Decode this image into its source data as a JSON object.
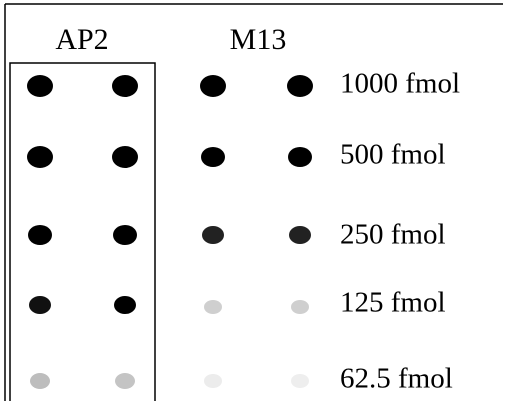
{
  "column_labels": [
    "AP2",
    "M13"
  ],
  "row_labels": [
    "1000 fmol",
    "500 fmol",
    "250 fmol",
    "125 fmol",
    "62.5 fmol"
  ]
}
